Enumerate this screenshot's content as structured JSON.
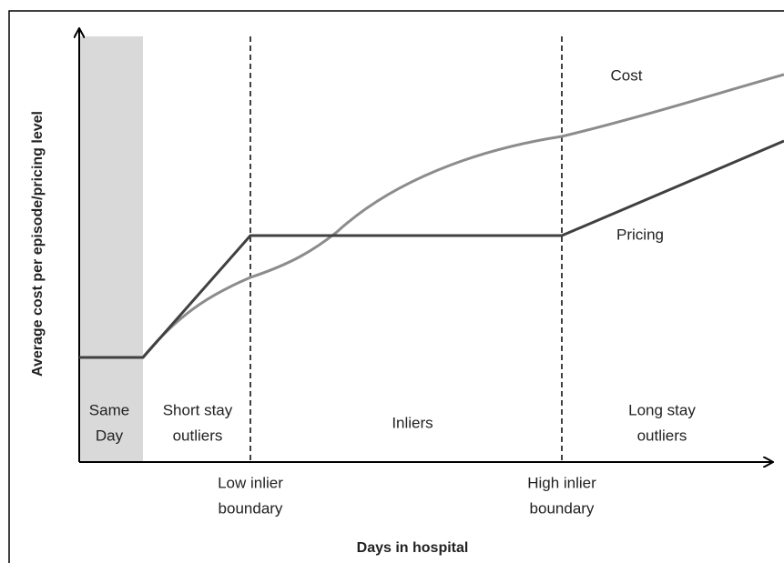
{
  "labels": {
    "cost": "Cost",
    "pricing": "Pricing"
  },
  "regions": {
    "same_day": [
      "Same",
      "Day"
    ],
    "short_stay": [
      "Short stay",
      "outliers"
    ],
    "inliers": "Inliers",
    "long_stay": [
      "Long stay",
      "outliers"
    ]
  },
  "boundaries": {
    "low": [
      "Low inlier",
      "boundary"
    ],
    "high": [
      "High inlier",
      "boundary"
    ]
  },
  "axes": {
    "y_label": "Average cost per episode/pricing level",
    "x_label": "Days in hospital"
  }
}
